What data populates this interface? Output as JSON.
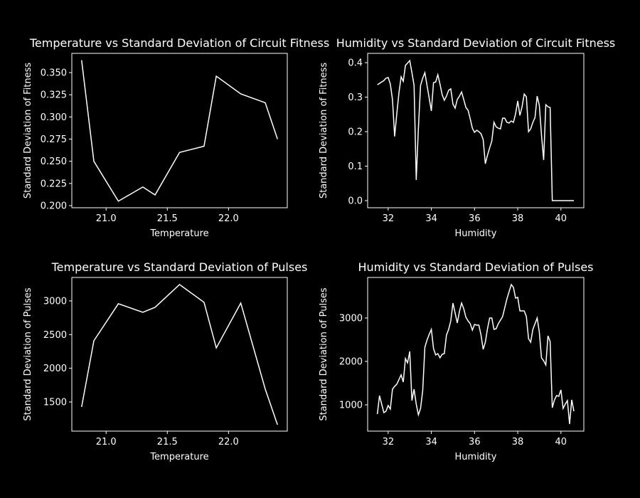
{
  "chart_data": [
    {
      "type": "line",
      "title": "Temperature vs Standard Deviation of Circuit Fitness",
      "xlabel": "Temperature",
      "ylabel": "Standard Deviation of Fitness",
      "x": [
        20.8,
        20.9,
        21.1,
        21.3,
        21.4,
        21.6,
        21.8,
        21.9,
        22.1,
        22.3,
        22.4
      ],
      "series": [
        {
          "color": "#ffffff",
          "values": [
            0.364,
            0.25,
            0.205,
            0.221,
            0.212,
            0.26,
            0.267,
            0.346,
            0.326,
            0.316,
            0.275
          ]
        }
      ],
      "xlim": [
        20.72,
        22.48
      ],
      "ylim": [
        0.1976,
        0.3717
      ],
      "xticks": [
        {
          "value": 21,
          "label": "21.0"
        },
        21.5,
        {
          "value": 22,
          "label": "22.0"
        }
      ],
      "yticks": [
        {
          "value": 0.2,
          "label": "0.200"
        },
        0.225,
        {
          "value": 0.25,
          "label": "0.250"
        },
        0.275,
        {
          "value": 0.3,
          "label": "0.300"
        },
        0.325,
        {
          "value": 0.35,
          "label": "0.350"
        }
      ]
    },
    {
      "type": "line",
      "title": "Humidity vs Standard Deviation of Circuit Fitness",
      "xlabel": "Humidity",
      "ylabel": "Standard Deviation of Fitness",
      "x": [
        31.5,
        31.8,
        31.9,
        32.0,
        32.1,
        32.2,
        32.3,
        32.4,
        32.5,
        32.6,
        32.7,
        32.8,
        33.0,
        33.1,
        33.2,
        33.3,
        33.4,
        33.5,
        33.6,
        33.7,
        33.8,
        33.9,
        34.0,
        34.1,
        34.2,
        34.3,
        34.4,
        34.5,
        34.6,
        34.7,
        34.8,
        34.9,
        35.0,
        35.1,
        35.2,
        35.3,
        35.4,
        35.5,
        35.6,
        35.7,
        35.8,
        35.9,
        36.0,
        36.1,
        36.2,
        36.3,
        36.4,
        36.5,
        36.6,
        36.7,
        36.8,
        36.9,
        37.0,
        37.1,
        37.2,
        37.3,
        37.4,
        37.5,
        37.6,
        37.7,
        37.8,
        37.9,
        38.0,
        38.1,
        38.2,
        38.3,
        38.4,
        38.5,
        38.6,
        38.7,
        38.8,
        38.9,
        39.0,
        39.1,
        39.2,
        39.3,
        39.4,
        39.5,
        39.6,
        39.8,
        40.0,
        40.2,
        40.4,
        40.6
      ],
      "series": [
        {
          "color": "#ffffff",
          "values": [
            0.336,
            0.348,
            0.355,
            0.357,
            0.338,
            0.293,
            0.186,
            0.252,
            0.313,
            0.359,
            0.346,
            0.392,
            0.406,
            0.371,
            0.334,
            0.06,
            0.21,
            0.334,
            0.355,
            0.371,
            0.334,
            0.297,
            0.26,
            0.342,
            0.344,
            0.365,
            0.338,
            0.307,
            0.291,
            0.303,
            0.32,
            0.324,
            0.28,
            0.268,
            0.293,
            0.303,
            0.315,
            0.293,
            0.27,
            0.262,
            0.237,
            0.21,
            0.198,
            0.204,
            0.2,
            0.194,
            0.177,
            0.107,
            0.132,
            0.153,
            0.173,
            0.227,
            0.214,
            0.21,
            0.208,
            0.239,
            0.239,
            0.227,
            0.225,
            0.231,
            0.227,
            0.252,
            0.289,
            0.247,
            0.272,
            0.309,
            0.301,
            0.2,
            0.208,
            0.227,
            0.241,
            0.303,
            0.276,
            0.19,
            0.118,
            0.278,
            0.272,
            0.27,
            0.0,
            0.0,
            0.0,
            0.0,
            0.0,
            0.0
          ]
        }
      ],
      "xlim": [
        31.05,
        41.06
      ],
      "ylim": [
        -0.0206,
        0.427
      ],
      "xticks": [
        32,
        34,
        36,
        38,
        40
      ],
      "yticks": [
        {
          "value": 0,
          "label": "0.0"
        },
        0.1,
        0.2,
        0.3,
        0.4
      ]
    },
    {
      "type": "line",
      "title": "Temperature vs Standard Deviation of Pulses",
      "xlabel": "Temperature",
      "ylabel": "Standard Deviation of Pulses",
      "x": [
        20.8,
        20.9,
        21.1,
        21.3,
        21.4,
        21.6,
        21.8,
        21.9,
        22.1,
        22.3,
        22.4
      ],
      "series": [
        {
          "color": "#ffffff",
          "values": [
            1426,
            2408,
            2958,
            2831,
            2905,
            3243,
            2979,
            2302,
            2968,
            1690,
            1162
          ]
        }
      ],
      "xlim": [
        20.72,
        22.48
      ],
      "ylim": [
        1067,
        3348
      ],
      "xticks": [
        {
          "value": 21,
          "label": "21.0"
        },
        21.5,
        {
          "value": 22,
          "label": "22.0"
        }
      ],
      "yticks": [
        1500,
        2000,
        2500,
        3000
      ]
    },
    {
      "type": "line",
      "title": "Humidity vs Standard Deviation of Pulses",
      "xlabel": "Humidity",
      "ylabel": "Standard Deviation of Pulses",
      "x": [
        31.5,
        31.6,
        31.8,
        31.9,
        32.0,
        32.1,
        32.2,
        32.3,
        32.4,
        32.6,
        32.7,
        32.8,
        32.9,
        33.0,
        33.1,
        33.2,
        33.3,
        33.4,
        33.5,
        33.6,
        33.7,
        33.8,
        33.9,
        34.0,
        34.1,
        34.2,
        34.3,
        34.4,
        34.5,
        34.6,
        34.7,
        34.8,
        34.9,
        35.0,
        35.1,
        35.2,
        35.3,
        35.4,
        35.5,
        35.6,
        35.7,
        35.8,
        35.9,
        36.0,
        36.1,
        36.2,
        36.3,
        36.4,
        36.5,
        36.6,
        36.7,
        36.8,
        36.9,
        37.0,
        37.1,
        37.3,
        37.5,
        37.7,
        37.8,
        37.9,
        38.0,
        38.1,
        38.3,
        38.4,
        38.5,
        38.6,
        38.7,
        38.9,
        39.0,
        39.1,
        39.2,
        39.3,
        39.4,
        39.5,
        39.6,
        39.7,
        39.8,
        39.9,
        40.0,
        40.1,
        40.2,
        40.3,
        40.4,
        40.5,
        40.6
      ],
      "series": [
        {
          "color": "#ffffff",
          "values": [
            787,
            1213,
            820,
            852,
            984,
            902,
            1361,
            1426,
            1475,
            1689,
            1525,
            2066,
            1967,
            2230,
            1098,
            1361,
            1016,
            770,
            918,
            1328,
            2328,
            2492,
            2623,
            2738,
            2295,
            2148,
            2180,
            2082,
            2164,
            2180,
            2607,
            2738,
            2934,
            3344,
            3115,
            2885,
            3148,
            3344,
            3213,
            3016,
            2934,
            2869,
            2721,
            2852,
            2836,
            2836,
            2607,
            2279,
            2443,
            2754,
            3000,
            3000,
            2738,
            2754,
            2869,
            3033,
            3443,
            3770,
            3705,
            3459,
            3475,
            3164,
            3164,
            3033,
            2525,
            2443,
            2738,
            3000,
            2672,
            2082,
            2016,
            1918,
            2590,
            2459,
            934,
            1115,
            1213,
            1197,
            1344,
            918,
            1016,
            1098,
            557,
            1115,
            852
          ]
        }
      ],
      "xlim": [
        31.05,
        41.06
      ],
      "ylim": [
        394,
        3934
      ],
      "xticks": [
        32,
        34,
        36,
        38,
        40
      ],
      "yticks": [
        1000,
        2000,
        3000
      ]
    }
  ]
}
